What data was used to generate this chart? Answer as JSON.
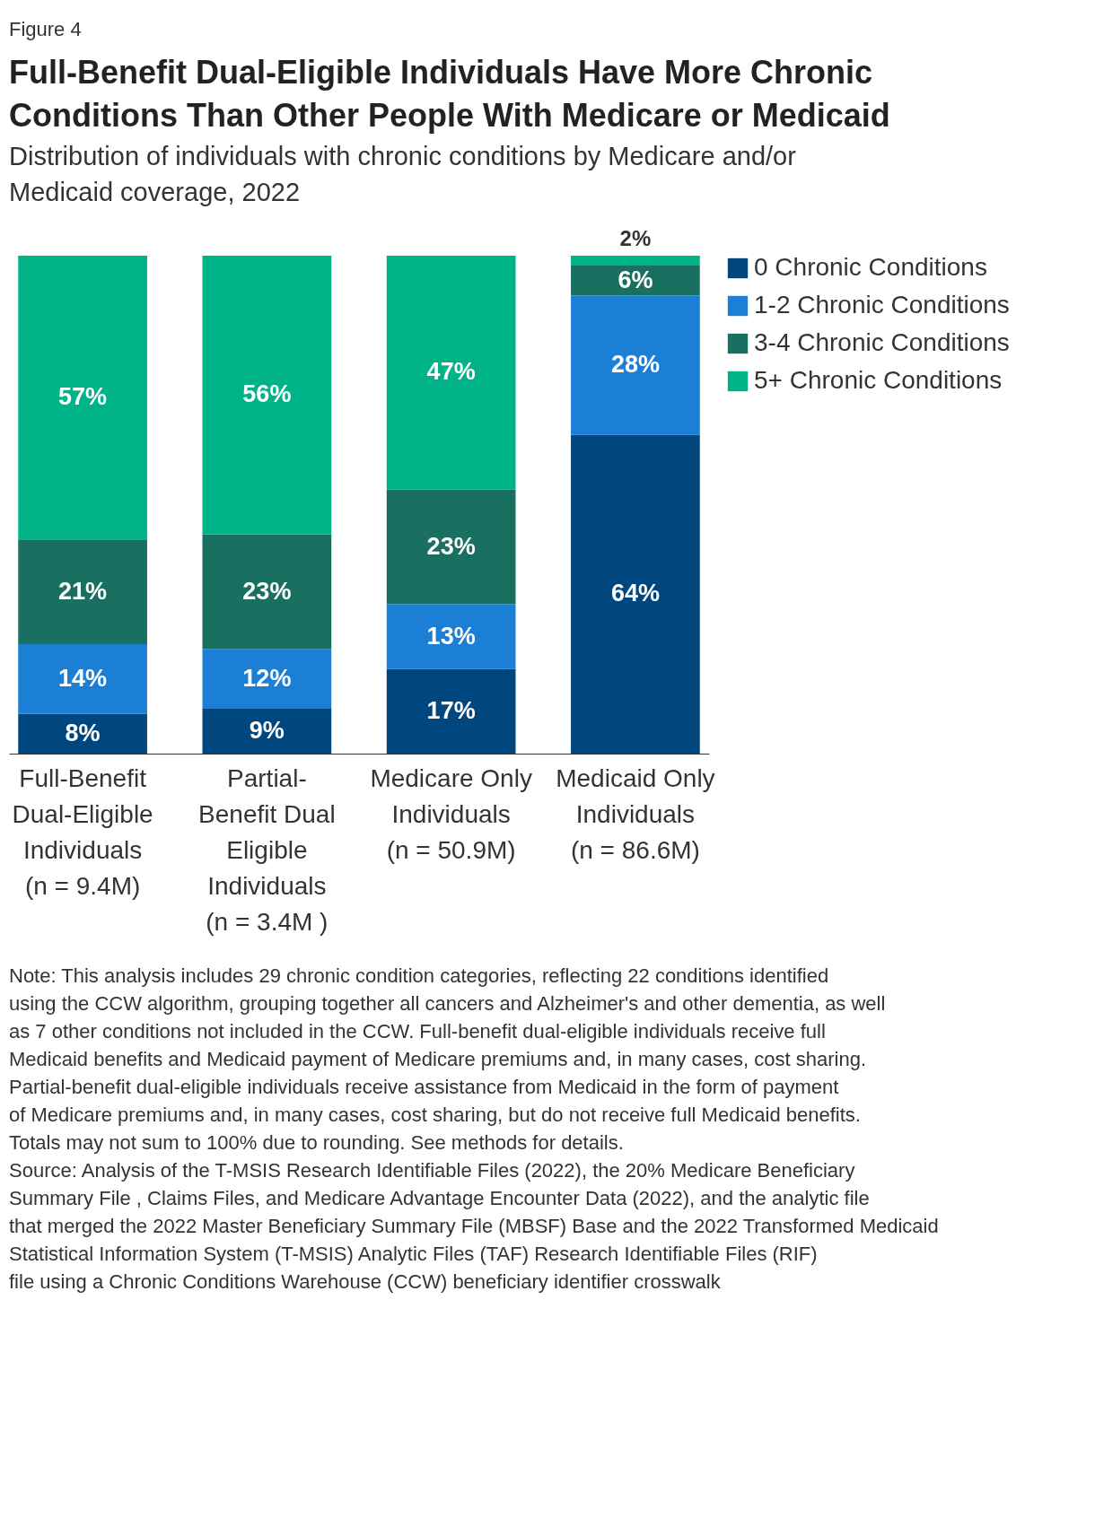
{
  "chart_data": {
    "type": "bar",
    "stacked": true,
    "title": "Full-Benefit Dual-Eligible Individuals Have More Chronic Conditions Than Other People With Medicare or Medicaid",
    "subtitle": "Distribution of individuals with chronic conditions by Medicare and/or Medicaid coverage, 2022",
    "categories": [
      "Full-Benefit Dual-Eligible Individuals (n = 9.4M)",
      "Partial-Benefit Dual Eligible Individuals (n = 3.4M )",
      "Medicare Only Individuals (n = 50.9M)",
      "Medicaid Only Individuals (n = 86.6M)"
    ],
    "series": [
      {
        "name": "0 Chronic Conditions",
        "color": "#00467f",
        "values": [
          8,
          9,
          17,
          64
        ],
        "value_labels": [
          "8%",
          "9%",
          "17%",
          "64%"
        ]
      },
      {
        "name": "1-2 Chronic Conditions",
        "color": "#1b7fd6",
        "values": [
          14,
          12,
          13,
          28
        ],
        "value_labels": [
          "14%",
          "12%",
          "13%",
          "28%"
        ]
      },
      {
        "name": "3-4 Chronic Conditions",
        "color": "#197060",
        "values": [
          21,
          23,
          23,
          6
        ],
        "value_labels": [
          "21%",
          "23%",
          "23%",
          "6%"
        ]
      },
      {
        "name": "5+ Chronic Conditions",
        "color": "#00b287",
        "values": [
          57,
          56,
          47,
          2
        ],
        "value_labels": [
          "57%",
          "56%",
          "47%",
          "2%"
        ]
      }
    ],
    "legend": "right",
    "annotations": [
      "Figure 4",
      "Note: This analysis includes 29 chronic condition categories, reflecting 22 conditions identified using the CCW algorithm, grouping together all cancers and Alzheimer's and other dementia, as well as 7 other conditions not included in the CCW. Full-benefit dual-eligible individuals receive full Medicaid benefits and Medicaid payment of Medicare premiums and, in many cases, cost sharing. Partial-benefit dual-eligible individuals receive assistance from Medicaid in the form of payment of Medicare premiums and, in many cases, cost sharing, but do not receive full Medicaid benefits. Totals may not sum to 100% due to rounding. See methods for details.",
      "Source: Analysis of the T-MSIS Research Identifiable Files (2022), the 20% Medicare Beneficiary Summary File , Claims Files, and Medicare Advantage Encounter Data (2022), and the analytic file that merged the 2022 Master Beneficiary Summary File (MBSF) Base and the 2022 Transformed Medicaid Statistical Information System (T-MSIS) Analytic Files (TAF) Research Identifiable Files (RIF) file using a Chronic Conditions Warehouse (CCW) beneficiary identifier crosswalk"
    ]
  }
}
